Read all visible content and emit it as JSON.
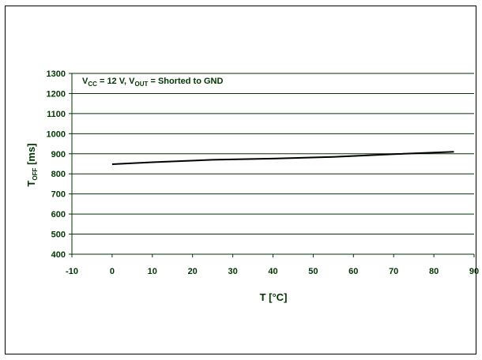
{
  "colors": {
    "text": "#003300",
    "axis": "#003300",
    "grid": "#003300",
    "series": "#000000",
    "border": "#000000"
  },
  "chart_data": {
    "type": "line",
    "title": "",
    "xlabel": "T [°C]",
    "ylabel": {
      "main": "T",
      "sub": "OFF",
      "rest": " [ms]"
    },
    "xlim": [
      -10,
      90
    ],
    "ylim": [
      400,
      1300
    ],
    "x_ticks": [
      "-10",
      "0",
      "10",
      "20",
      "30",
      "40",
      "50",
      "60",
      "70",
      "80",
      "90"
    ],
    "y_ticks": [
      "400",
      "500",
      "600",
      "700",
      "800",
      "900",
      "1000",
      "1100",
      "1200",
      "1300"
    ],
    "grid": "horizontal",
    "annotation": {
      "v1": "V",
      "s1": "CC",
      "mid": " = 12 V, V",
      "s2": "OUT",
      "tail": " = Shorted to GND"
    },
    "series": [
      {
        "x": [
          0,
          10,
          25,
          40,
          55,
          70,
          85
        ],
        "y": [
          848,
          858,
          870,
          876,
          884,
          898,
          910
        ]
      }
    ]
  }
}
